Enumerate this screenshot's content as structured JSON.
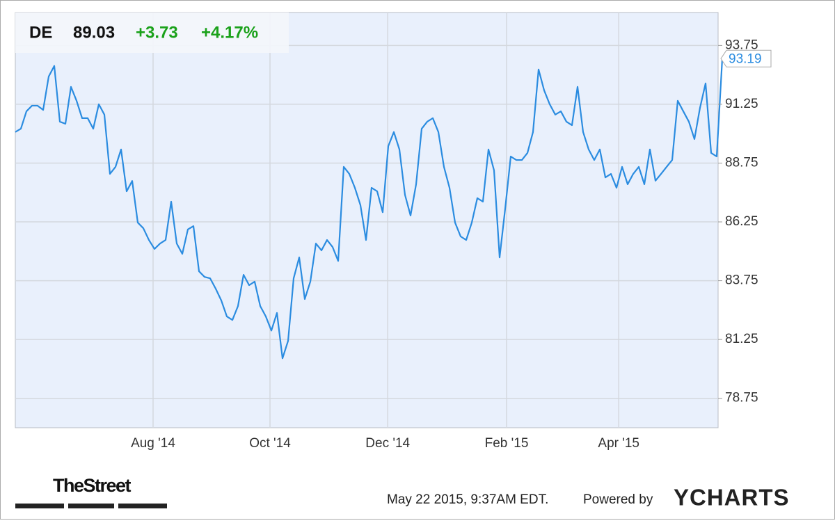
{
  "chart_data": {
    "type": "line",
    "ticker": "DE",
    "change": "+3.73",
    "change_percent": "+4.17%",
    "series": [
      {
        "name": "DE",
        "color": "#2b8ce0",
        "values": [
          90.07,
          90.21,
          90.95,
          91.19,
          91.19,
          91.01,
          92.43,
          92.88,
          90.51,
          90.42,
          91.99,
          91.4,
          90.66,
          90.66,
          90.21,
          91.25,
          90.81,
          88.29,
          88.59,
          89.33,
          87.55,
          87.99,
          86.22,
          85.98,
          85.48,
          85.1,
          85.33,
          85.48,
          87.11,
          85.33,
          84.89,
          85.93,
          86.07,
          84.15,
          83.91,
          83.85,
          83.41,
          82.91,
          82.23,
          82.08,
          82.67,
          84.0,
          83.56,
          83.71,
          82.67,
          82.23,
          81.63,
          82.38,
          80.45,
          81.19,
          83.85,
          84.74,
          82.97,
          83.71,
          85.33,
          85.04,
          85.48,
          85.18,
          84.59,
          88.59,
          88.29,
          87.7,
          86.96,
          85.48,
          87.7,
          87.55,
          86.66,
          89.47,
          90.07,
          89.33,
          87.4,
          86.52,
          87.85,
          90.21,
          90.51,
          90.66,
          90.07,
          88.59,
          87.7,
          86.22,
          85.63,
          85.48,
          86.22,
          87.26,
          87.11,
          89.33,
          88.44,
          84.74,
          86.81,
          89.03,
          88.88,
          88.88,
          89.18,
          90.07,
          92.73,
          91.84,
          91.25,
          90.81,
          90.95,
          90.51,
          90.36,
          91.99,
          90.07,
          89.33,
          88.88,
          89.33,
          88.14,
          88.29,
          87.7,
          88.59,
          87.85,
          88.29,
          88.59,
          87.85,
          89.33,
          88.0,
          88.29,
          88.59,
          88.88,
          91.4,
          90.95,
          90.51,
          89.77,
          91.1,
          92.14,
          89.18,
          89.03,
          93.19
        ]
      }
    ],
    "xlim": [
      0,
      126.25
    ],
    "xticks": [
      {
        "value": 24.75,
        "label": "Aug '14"
      },
      {
        "value": 45.75,
        "label": "Oct '14"
      },
      {
        "value": 66.9,
        "label": "Dec '14"
      },
      {
        "value": 88.25,
        "label": "Feb '15"
      },
      {
        "value": 108.4,
        "label": "Apr '15"
      }
    ],
    "ylim": [
      77.5,
      95.15
    ],
    "yticks": [
      78.75,
      81.25,
      83.75,
      86.25,
      88.75,
      91.25,
      93.75
    ],
    "grid": true,
    "source": "TheStreet",
    "timestamp": "May 22 2015, 9:37AM EDT.",
    "powered_by": "Powered by",
    "brand": "YCHARTS"
  }
}
